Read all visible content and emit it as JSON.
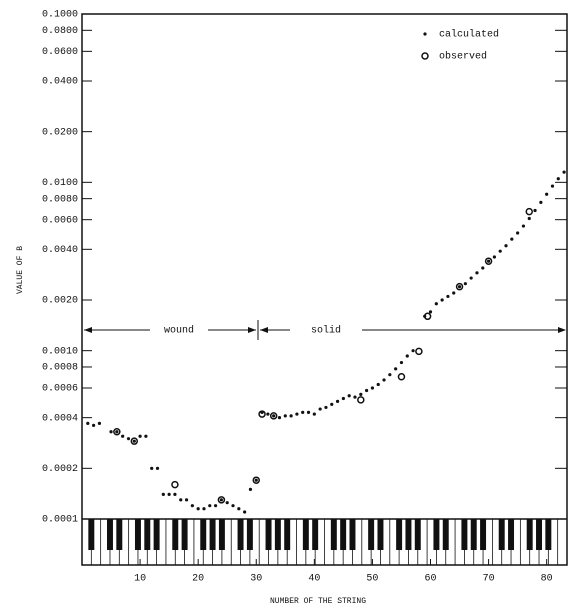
{
  "chart_data": {
    "type": "scatter",
    "xlabel": "NUMBER OF THE STRING",
    "ylabel": "VALUE OF B",
    "xlim": [
      0,
      83.5
    ],
    "ylim": [
      0.0001,
      0.1
    ],
    "ylog": true,
    "xticks": [
      10,
      20,
      30,
      40,
      50,
      60,
      70,
      80
    ],
    "yticks": [
      {
        "value": 0.1,
        "label": "0.1000"
      },
      {
        "value": 0.08,
        "label": "0.0800"
      },
      {
        "value": 0.06,
        "label": "0.0600"
      },
      {
        "value": 0.04,
        "label": "0.0400"
      },
      {
        "value": 0.02,
        "label": "0.0200"
      },
      {
        "value": 0.01,
        "label": "0.0100"
      },
      {
        "value": 0.008,
        "label": "0.0080"
      },
      {
        "value": 0.006,
        "label": "0.0060"
      },
      {
        "value": 0.004,
        "label": "0.0040"
      },
      {
        "value": 0.002,
        "label": "0.0020"
      },
      {
        "value": 0.001,
        "label": "0.0010"
      },
      {
        "value": 0.0008,
        "label": "0.0008"
      },
      {
        "value": 0.0006,
        "label": "0.0006"
      },
      {
        "value": 0.0004,
        "label": "0.0004"
      },
      {
        "value": 0.0002,
        "label": "0.0002"
      },
      {
        "value": 0.0001,
        "label": "0.0001"
      }
    ],
    "legend": "upper right",
    "annotations": [
      "wound",
      "solid"
    ],
    "series": [
      {
        "name": "calculated",
        "marker": "dot",
        "color": "#111111",
        "x": [
          1,
          2,
          3,
          5,
          6,
          7,
          8,
          9,
          10,
          11,
          12,
          13,
          14,
          15,
          16,
          17,
          18,
          19,
          20,
          21,
          22,
          23,
          24,
          25,
          26,
          27,
          28,
          29,
          30,
          31,
          32,
          33,
          34,
          35,
          36,
          37,
          38,
          39,
          40,
          41,
          42,
          43,
          44,
          45,
          46,
          47,
          48,
          49,
          50,
          51,
          52,
          53,
          54,
          55,
          56,
          57,
          59,
          60,
          61,
          62,
          63,
          64,
          65,
          66,
          67,
          68,
          69,
          70,
          71,
          72,
          73,
          74,
          75,
          76,
          77,
          78,
          79,
          80,
          81,
          82,
          83
        ],
        "values": [
          0.00037,
          0.00036,
          0.00037,
          0.00033,
          0.00033,
          0.00031,
          0.0003,
          0.00029,
          0.00031,
          0.00031,
          0.0002,
          0.0002,
          0.00014,
          0.00014,
          0.00014,
          0.00013,
          0.00013,
          0.00012,
          0.000115,
          0.000115,
          0.00012,
          0.00012,
          0.00013,
          0.000125,
          0.00012,
          0.000115,
          0.00011,
          0.00015,
          0.00017,
          0.00043,
          0.00042,
          0.00041,
          0.0004,
          0.00041,
          0.00041,
          0.00042,
          0.00043,
          0.00043,
          0.00042,
          0.00045,
          0.00046,
          0.00048,
          0.0005,
          0.00052,
          0.00054,
          0.00053,
          0.00055,
          0.00058,
          0.0006,
          0.00063,
          0.00067,
          0.00072,
          0.00078,
          0.00085,
          0.00093,
          0.001,
          0.0016,
          0.0017,
          0.0019,
          0.002,
          0.0021,
          0.0022,
          0.0024,
          0.0025,
          0.0027,
          0.0029,
          0.0031,
          0.0034,
          0.0036,
          0.0039,
          0.0042,
          0.0046,
          0.005,
          0.0055,
          0.0061,
          0.0068,
          0.0076,
          0.0085,
          0.0095,
          0.0105,
          0.0115
        ]
      },
      {
        "name": "observed",
        "marker": "circle",
        "color": "#111111",
        "x": [
          6,
          9,
          16,
          24,
          30,
          31,
          33,
          48,
          55,
          58,
          59.5,
          65,
          70,
          77
        ],
        "values": [
          0.00033,
          0.00029,
          0.00016,
          0.00013,
          0.00017,
          0.00042,
          0.00041,
          0.00051,
          0.0007,
          0.00099,
          0.0016,
          0.0024,
          0.0034,
          0.0067
        ]
      }
    ]
  }
}
